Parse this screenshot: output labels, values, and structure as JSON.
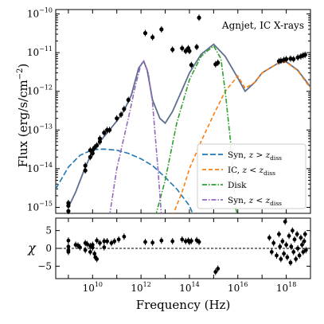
{
  "chart_data": [
    {
      "type": "line",
      "panel": "sed",
      "annotation": "Agnjet, IC X-rays",
      "xlabel": "",
      "ylabel_main": "Flux (erg/s/cm",
      "ylabel_sup": "−2",
      "ylabel_close": ")",
      "xscale": "log",
      "yscale": "log",
      "xlim": [
        300000000.0,
        1e+19
      ],
      "ylim": [
        7e-16,
        1.3e-10
      ],
      "y_ticks": [
        {
          "value": 1e-15,
          "exp": "−15"
        },
        {
          "value": 1e-14,
          "exp": "−14"
        },
        {
          "value": 1e-13,
          "exp": "−13"
        },
        {
          "value": 1e-12,
          "exp": "−12"
        },
        {
          "value": 1e-11,
          "exp": "−11"
        },
        {
          "value": 1e-10,
          "exp": "−10"
        }
      ],
      "legend": {
        "placement": "lower-right",
        "entries": [
          {
            "series": "syn_outer",
            "label": "Syn, ",
            "math": "z > z",
            "sub": "diss"
          },
          {
            "series": "ic_inner",
            "label": "IC, ",
            "math": "z < z",
            "sub": "diss"
          },
          {
            "series": "disk",
            "label": "Disk",
            "math": "",
            "sub": ""
          },
          {
            "series": "syn_inner",
            "label": "Syn, ",
            "math": "z < z",
            "sub": "diss"
          }
        ]
      },
      "series": [
        {
          "key": "total",
          "color": "#5f6f8f",
          "dash": "solid",
          "points": [
            [
              1000000000.0,
              1e-15
            ],
            [
              2000000000.0,
              2.5e-15
            ],
            [
              5000000000.0,
              1.1e-14
            ],
            [
              10000000000.0,
              2.8e-14
            ],
            [
              20000000000.0,
              5e-14
            ],
            [
              50000000000.0,
              1e-13
            ],
            [
              100000000000.0,
              1.7e-13
            ],
            [
              200000000000.0,
              3.2e-13
            ],
            [
              400000000000.0,
              8e-13
            ],
            [
              800000000000.0,
              4e-12
            ],
            [
              1300000000000.0,
              6e-12
            ],
            [
              1800000000000.0,
              3.5e-12
            ],
            [
              3000000000000.0,
              6e-13
            ],
            [
              6000000000000.0,
              2e-13
            ],
            [
              10000000000000.0,
              1.5e-13
            ],
            [
              20000000000000.0,
              3e-13
            ],
            [
              50000000000000.0,
              1.1e-12
            ],
            [
              100000000000000.0,
              3e-12
            ],
            [
              300000000000000.0,
              9e-12
            ],
            [
              1000000000000000.0,
              1.65e-11
            ],
            [
              3000000000000000.0,
              8e-12
            ],
            [
              1e+16,
              2.2e-12
            ],
            [
              2e+16,
              1e-12
            ],
            [
              5e+16,
              1.7e-12
            ],
            [
              1e+17,
              3e-12
            ],
            [
              5e+17,
              5.5e-12
            ],
            [
              1e+18,
              5.8e-12
            ],
            [
              3e+18,
              3.5e-12
            ],
            [
              1e+19,
              1.3e-12
            ]
          ]
        },
        {
          "key": "syn_outer",
          "color": "#1f77b4",
          "dash": "long",
          "points": [
            [
              300000000.0,
              3e-15
            ],
            [
              1000000000.0,
              1.1e-14
            ],
            [
              3000000000.0,
              2.2e-14
            ],
            [
              10000000000.0,
              3.1e-14
            ],
            [
              30000000000.0,
              3.2e-14
            ],
            [
              100000000000.0,
              3e-14
            ],
            [
              300000000000.0,
              2.5e-14
            ],
            [
              1000000000000.0,
              1.8e-14
            ],
            [
              3000000000000.0,
              1.2e-14
            ],
            [
              10000000000000.0,
              6e-15
            ],
            [
              30000000000000.0,
              3e-15
            ],
            [
              100000000000000.0,
              1.1e-15
            ],
            [
              150000000000000.0,
              6e-16
            ]
          ]
        },
        {
          "key": "ic_inner",
          "color": "#ff7f0e",
          "dash": "medium",
          "points": [
            [
              20000000000000.0,
              6e-16
            ],
            [
              50000000000000.0,
              2.5e-15
            ],
            [
              100000000000000.0,
              1e-14
            ],
            [
              300000000000000.0,
              5e-14
            ],
            [
              1000000000000000.0,
              2.5e-13
            ],
            [
              3000000000000000.0,
              1e-12
            ],
            [
              1e+16,
              2.5e-12
            ],
            [
              2e+16,
              1.2e-12
            ],
            [
              5e+16,
              1.7e-12
            ],
            [
              1e+17,
              3e-12
            ],
            [
              5e+17,
              5.5e-12
            ],
            [
              1e+18,
              5.7e-12
            ],
            [
              3e+18,
              3.4e-12
            ],
            [
              1e+19,
              1.2e-12
            ]
          ]
        },
        {
          "key": "disk",
          "color": "#2ca02c",
          "dash": "dashdot",
          "points": [
            [
              4000000000000.0,
              6e-16
            ],
            [
              10000000000000.0,
              5e-15
            ],
            [
              30000000000000.0,
              1.5e-13
            ],
            [
              100000000000000.0,
              2e-12
            ],
            [
              300000000000000.0,
              8e-12
            ],
            [
              1000000000000000.0,
              1.5e-11
            ],
            [
              2000000000000000.0,
              7e-12
            ],
            [
              3000000000000000.0,
              1e-12
            ],
            [
              5000000000000000.0,
              5e-14
            ],
            [
              8000000000000000.0,
              1e-15
            ],
            [
              1e+16,
              6e-16
            ]
          ]
        },
        {
          "key": "syn_inner",
          "color": "#9467bd",
          "dash": "dashdot",
          "points": [
            [
              50000000000.0,
              6e-16
            ],
            [
              100000000000.0,
              1e-14
            ],
            [
              300000000000.0,
              2e-13
            ],
            [
              600000000000.0,
              1.5e-12
            ],
            [
              1000000000000.0,
              5e-12
            ],
            [
              1300000000000.0,
              6e-12
            ],
            [
              2000000000000.0,
              3e-12
            ],
            [
              3000000000000.0,
              5e-13
            ],
            [
              5000000000000.0,
              1e-14
            ],
            [
              7000000000000.0,
              6e-16
            ]
          ]
        }
      ],
      "data_points": [
        [
          1000000000.0,
          1.3e-15
        ],
        [
          1000000000.0,
          8e-16
        ],
        [
          1000000000.0,
          1.1e-15
        ],
        [
          5000000000.0,
          9e-15
        ],
        [
          5000000000.0,
          1.2e-14
        ],
        [
          8000000000.0,
          2e-14
        ],
        [
          8000000000.0,
          3e-14
        ],
        [
          10000000000.0,
          2.5e-14
        ],
        [
          10000000000.0,
          3e-14
        ],
        [
          12000000000.0,
          3.5e-14
        ],
        [
          15000000000.0,
          4e-14
        ],
        [
          20000000000.0,
          5e-14
        ],
        [
          20000000000.0,
          6e-14
        ],
        [
          30000000000.0,
          8.5e-14
        ],
        [
          40000000000.0,
          1e-13
        ],
        [
          50000000000.0,
          1e-13
        ],
        [
          100000000000.0,
          2e-13
        ],
        [
          150000000000.0,
          2.5e-13
        ],
        [
          200000000000.0,
          3.5e-13
        ],
        [
          300000000000.0,
          6e-13
        ],
        [
          1500000000000.0,
          3.2e-11
        ],
        [
          3000000000000.0,
          2.5e-11
        ],
        [
          7000000000000.0,
          4e-11
        ],
        [
          20000000000000.0,
          1.2e-11
        ],
        [
          50000000000000.0,
          1.3e-11
        ],
        [
          70000000000000.0,
          1.1e-11
        ],
        [
          90000000000000.0,
          1.3e-11
        ],
        [
          100000000000000.0,
          1.1e-11
        ],
        [
          120000000000000.0,
          4.8e-12
        ],
        [
          200000000000000.0,
          1.4e-11
        ],
        [
          250000000000000.0,
          8e-11
        ],
        [
          1200000000000000.0,
          5e-12
        ],
        [
          1500000000000000.0,
          5.5e-12
        ],
        [
          5e+17,
          6e-12
        ],
        [
          6e+17,
          6.2e-12
        ],
        [
          8e+17,
          6.5e-12
        ],
        [
          1e+18,
          6.8e-12
        ],
        [
          1.5e+18,
          7e-12
        ],
        [
          2e+18,
          6.8e-12
        ],
        [
          3e+18,
          7.5e-12
        ],
        [
          4e+18,
          8e-12
        ],
        [
          5e+18,
          8.5e-12
        ],
        [
          6e+18,
          8.8e-12
        ]
      ]
    },
    {
      "type": "scatter",
      "panel": "residual",
      "ylabel": "χ",
      "xlabel": "Frequency (Hz)",
      "xscale": "log",
      "xlim": [
        300000000.0,
        1e+19
      ],
      "ylim": [
        -8.5,
        8.5
      ],
      "y_ticks": [
        {
          "value": -5,
          "label": "−5"
        },
        {
          "value": 0,
          "label": "0"
        },
        {
          "value": 5,
          "label": "5"
        }
      ],
      "x_ticks": [
        {
          "value": 10000000000.0,
          "exp": "10"
        },
        {
          "value": 1000000000000.0,
          "exp": "12"
        },
        {
          "value": 100000000000000.0,
          "exp": "14"
        },
        {
          "value": 1e+16,
          "exp": "16"
        },
        {
          "value": 1e+18,
          "exp": "18"
        }
      ],
      "zero_line": 0,
      "points": [
        [
          1000000000.0,
          2.2
        ],
        [
          1000000000.0,
          0.5
        ],
        [
          1000000000.0,
          -0.5
        ],
        [
          1000000000.0,
          -1
        ],
        [
          2000000000.0,
          1
        ],
        [
          2500000000.0,
          0.8
        ],
        [
          3000000000.0,
          0.3
        ],
        [
          5000000000.0,
          1.5
        ],
        [
          5000000000.0,
          -0.5
        ],
        [
          6000000000.0,
          1.2
        ],
        [
          8000000000.0,
          0.7
        ],
        [
          8000000000.0,
          -1
        ],
        [
          10000000000.0,
          1
        ],
        [
          10000000000.0,
          0.2
        ],
        [
          12000000000.0,
          -1.5
        ],
        [
          13000000000.0,
          -2.5
        ],
        [
          15000000000.0,
          2.2
        ],
        [
          15000000000.0,
          -3
        ],
        [
          20000000000.0,
          1.5
        ],
        [
          30000000000.0,
          2
        ],
        [
          30000000000.0,
          0.3
        ],
        [
          40000000000.0,
          2
        ],
        [
          60000000000.0,
          1.5
        ],
        [
          80000000000.0,
          2
        ],
        [
          120000000000.0,
          2.5
        ],
        [
          200000000000.0,
          3.3
        ],
        [
          1500000000000.0,
          1.8
        ],
        [
          3000000000000.0,
          1.6
        ],
        [
          7000000000000.0,
          2.2
        ],
        [
          20000000000000.0,
          2
        ],
        [
          50000000000000.0,
          2.5
        ],
        [
          70000000000000.0,
          2
        ],
        [
          90000000000000.0,
          2.2
        ],
        [
          100000000000000.0,
          1.8
        ],
        [
          120000000000000.0,
          2.1
        ],
        [
          200000000000000.0,
          2.3
        ],
        [
          250000000000000.0,
          1.8
        ],
        [
          1200000000000000.0,
          -6.6
        ],
        [
          1500000000000000.0,
          -5.7
        ],
        [
          2e+17,
          3
        ],
        [
          2.5e+17,
          -1
        ],
        [
          3e+17,
          1.5
        ],
        [
          4e+17,
          -2
        ],
        [
          5e+17,
          4
        ],
        [
          5.5e+17,
          0.5
        ],
        [
          6e+17,
          -3
        ],
        [
          7e+17,
          2
        ],
        [
          8e+17,
          -1.5
        ],
        [
          9e+17,
          7.5
        ],
        [
          1e+18,
          1
        ],
        [
          1.1e+18,
          -2.5
        ],
        [
          1.3e+18,
          3.5
        ],
        [
          1.5e+18,
          -4
        ],
        [
          1.6e+18,
          0.5
        ],
        [
          1.8e+18,
          5
        ],
        [
          2e+18,
          -1
        ],
        [
          2.2e+18,
          2.5
        ],
        [
          2.5e+18,
          -3
        ],
        [
          2.8e+18,
          4
        ],
        [
          3e+18,
          0
        ],
        [
          3.5e+18,
          -2
        ],
        [
          4e+18,
          3
        ],
        [
          4.5e+18,
          1
        ],
        [
          5e+18,
          -1
        ],
        [
          5.5e+18,
          2
        ],
        [
          6e+18,
          4
        ],
        [
          6.5e+18,
          -0.5
        ]
      ]
    }
  ]
}
